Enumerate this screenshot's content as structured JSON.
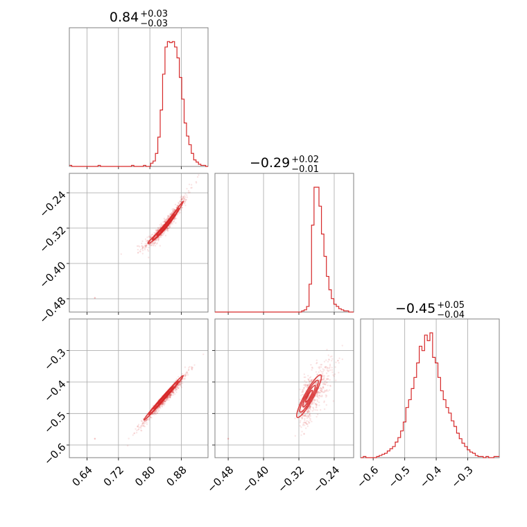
{
  "chart_data": {
    "type": "corner",
    "color": "#d62728",
    "parameters": [
      {
        "median": "0.84",
        "plus": "+0.03",
        "minus": "−0.03",
        "range": [
          0.595,
          0.948
        ],
        "ticks": [
          0.64,
          0.72,
          0.8,
          0.88
        ],
        "tick_labels": [
          "0.64",
          "0.72",
          "0.80",
          "0.88"
        ]
      },
      {
        "median": "−0.29",
        "plus": "+0.02",
        "minus": "−0.01",
        "range": [
          -0.51,
          -0.196
        ],
        "ticks": [
          -0.48,
          -0.4,
          -0.32,
          -0.24
        ],
        "tick_labels": [
          "−0.48",
          "−0.40",
          "−0.32",
          "−0.24"
        ]
      },
      {
        "median": "−0.45",
        "plus": "+0.05",
        "minus": "−0.04",
        "range": [
          -0.64,
          -0.2
        ],
        "ticks": [
          -0.6,
          -0.5,
          -0.4,
          -0.3
        ],
        "tick_labels": [
          "−0.6",
          "−0.5",
          "−0.4",
          "−0.3"
        ]
      }
    ],
    "histograms": [
      {
        "edges_start": 0.595,
        "edges_end": 0.948,
        "counts": [
          1,
          0,
          0,
          0,
          0,
          0,
          0,
          0,
          0,
          0,
          0,
          0,
          1,
          0,
          0,
          0,
          0,
          0,
          0,
          0,
          0,
          0,
          0,
          0,
          0,
          0,
          1,
          0,
          0,
          0,
          0,
          1,
          0,
          0,
          3,
          5,
          12,
          27,
          52,
          85,
          110,
          115,
          114,
          115,
          110,
          100,
          82,
          62,
          40,
          28,
          20,
          12,
          6,
          4,
          2,
          1,
          1,
          0
        ]
      },
      {
        "edges_start": -0.51,
        "edges_end": -0.196,
        "counts": [
          0,
          0,
          0,
          0,
          0,
          0,
          0,
          0,
          0,
          0,
          0,
          0,
          0,
          0,
          0,
          0,
          0,
          0,
          0,
          0,
          0,
          0,
          0,
          0,
          0,
          0,
          0,
          0,
          0,
          0,
          0,
          0,
          0,
          0,
          0,
          1,
          2,
          5,
          25,
          78,
          112,
          112,
          95,
          70,
          50,
          32,
          20,
          12,
          7,
          5,
          3,
          2,
          1,
          1,
          0,
          0
        ]
      },
      {
        "edges_start": -0.64,
        "edges_end": -0.2,
        "counts": [
          0,
          1,
          0,
          0,
          0,
          0,
          1,
          2,
          3,
          4,
          6,
          8,
          10,
          14,
          18,
          24,
          32,
          45,
          52,
          62,
          72,
          85,
          100,
          96,
          110,
          105,
          112,
          90,
          85,
          72,
          60,
          52,
          45,
          40,
          33,
          28,
          22,
          17,
          13,
          10,
          7,
          5,
          4,
          2,
          1,
          1,
          0,
          1,
          0,
          0,
          1,
          1
        ]
      }
    ],
    "scatter_pairs": [
      {
        "x_param": 0,
        "y_param": 1,
        "relation": "y = -0.315 + 1.05*(x - 0.84) + 4.0*(x - 0.84)^2"
      },
      {
        "x_param": 0,
        "y_param": 2,
        "relation": "y = -0.45 + 1.4*(x - 0.84)"
      },
      {
        "x_param": 1,
        "y_param": 2,
        "relation": "y = -0.45 + 1.7*(x + 0.295)"
      }
    ]
  }
}
